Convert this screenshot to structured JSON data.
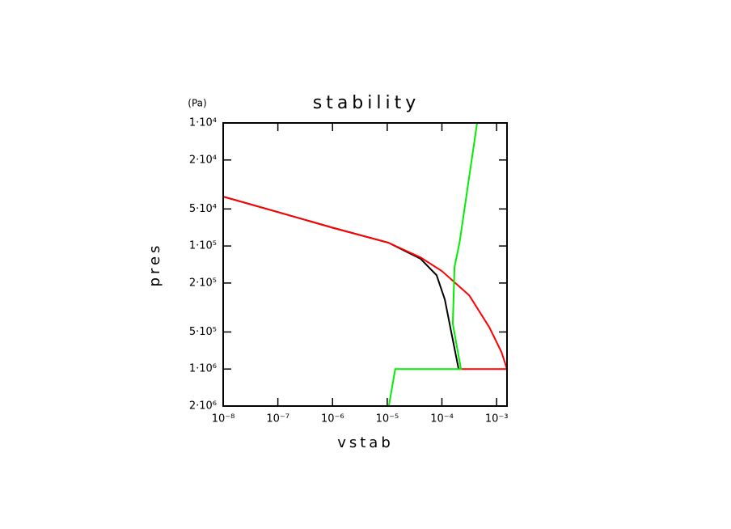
{
  "chart_data": {
    "type": "line",
    "title": "stability",
    "x_label": "vstab",
    "y_label": "pres",
    "y_unit": "(Pa)",
    "xscale": "log",
    "yscale": "log",
    "xlim": [
      1e-08,
      0.00155
    ],
    "xticks": [
      {
        "value": 1e-08,
        "label": "10⁻⁸"
      },
      {
        "value": 1e-07,
        "label": "10⁻⁷"
      },
      {
        "value": 1e-06,
        "label": "10⁻⁶"
      },
      {
        "value": 1e-05,
        "label": "10⁻⁵"
      },
      {
        "value": 0.0001,
        "label": "10⁻⁴"
      },
      {
        "value": 0.001,
        "label": "10⁻³"
      }
    ],
    "ylim": [
      2000000,
      10000
    ],
    "yticks": [
      {
        "value": 10000,
        "label": "1·10⁴"
      },
      {
        "value": 20000,
        "label": "2·10⁴"
      },
      {
        "value": 50000,
        "label": "5·10⁴"
      },
      {
        "value": 100000,
        "label": "1·10⁵"
      },
      {
        "value": 200000,
        "label": "2·10⁵"
      },
      {
        "value": 500000,
        "label": "5·10⁵"
      },
      {
        "value": 1000000,
        "label": "1·10⁶"
      },
      {
        "value": 2000000,
        "label": "2·10⁶"
      }
    ],
    "series": [
      {
        "color": "#000000",
        "x": [
          1e-08,
          1e-07,
          1e-06,
          1.05e-05,
          4.07e-05,
          8e-05,
          0.000113,
          0.000148,
          0.000202
        ],
        "values": [
          39700,
          53000,
          71000,
          94000,
          127000,
          173000,
          272000,
          500000,
          1000000
        ]
      },
      {
        "color": "#ff0000",
        "x": [
          1e-08,
          1e-08,
          1e-07,
          1e-06,
          1.05e-05,
          4.07e-05,
          0.0001,
          0.000316,
          0.00074,
          0.00123,
          0.00155,
          0.000202
        ],
        "values": [
          10000,
          39700,
          53000,
          71000,
          94000,
          124000,
          160000,
          252000,
          460000,
          730000,
          1000000,
          1000000
        ]
      },
      {
        "color": "#00ee00",
        "x": [
          1.07e-05,
          1.4e-05,
          0.000223,
          0.000158,
          0.00017,
          0.00021,
          0.00044
        ],
        "values": [
          2000000,
          1000000,
          1000000,
          428000,
          148000,
          94000,
          10000
        ]
      }
    ]
  }
}
